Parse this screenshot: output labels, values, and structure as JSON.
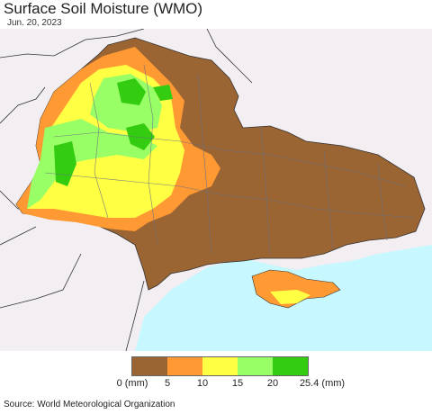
{
  "title": "Surface Soil Moisture (WMO)",
  "date": "Jun. 20, 2023",
  "legend": {
    "colors": [
      "#9a6433",
      "#ff9933",
      "#ffff44",
      "#99ff66",
      "#33cc11"
    ],
    "tick_labels": [
      "0 (mm)",
      "5",
      "10",
      "15",
      "20",
      "25.4 (mm)"
    ]
  },
  "source": "Source: World Meteorological Organization",
  "colors": {
    "sea": "#c8f8ff",
    "land_outside": "#f3eef2",
    "dry": "#9a6433"
  }
}
